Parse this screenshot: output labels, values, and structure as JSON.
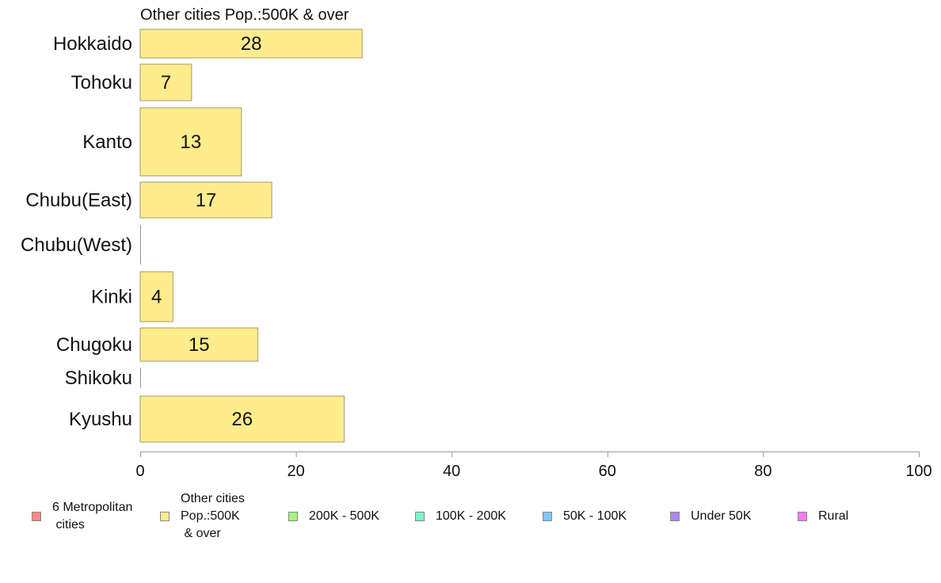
{
  "chart_data": {
    "type": "bar",
    "orientation": "horizontal",
    "title": "Other cities Pop.:500K & over",
    "xlabel": "",
    "ylabel": "",
    "xlim": [
      0,
      100
    ],
    "xticks": [
      "0",
      "20",
      "40",
      "60",
      "80",
      "100"
    ],
    "grid": false,
    "legend_position": "bottom",
    "bar_color": "#ffec8c",
    "categories": [
      "Hokkaido",
      "Tohoku",
      "Kanto",
      "Chubu(East)",
      "Chubu(West)",
      "Kinki",
      "Chugoku",
      "Shikoku",
      "Kyushu"
    ],
    "values": [
      28.5,
      6.6,
      13,
      16.9,
      0,
      4.2,
      15.1,
      0,
      26.2
    ],
    "data_labels": [
      "28",
      "7",
      "13",
      "17",
      "",
      "4",
      "15",
      "",
      "26"
    ],
    "series_name": "Other cities Pop.:500K & over"
  },
  "legend": [
    {
      "label": "6 Metropolitan\n cities",
      "color": "#ff8b80"
    },
    {
      "label": "Other cities\nPop.:500K\n & over",
      "color": "#ffec8c"
    },
    {
      "label": "200K - 500K",
      "color": "#a6f580"
    },
    {
      "label": "100K - 200K",
      "color": "#7ff5c8"
    },
    {
      "label": "50K - 100K",
      "color": "#80c8f5"
    },
    {
      "label": "Under 50K",
      "color": "#a88af5"
    },
    {
      "label": "Rural",
      "color": "#f57cf0"
    }
  ]
}
